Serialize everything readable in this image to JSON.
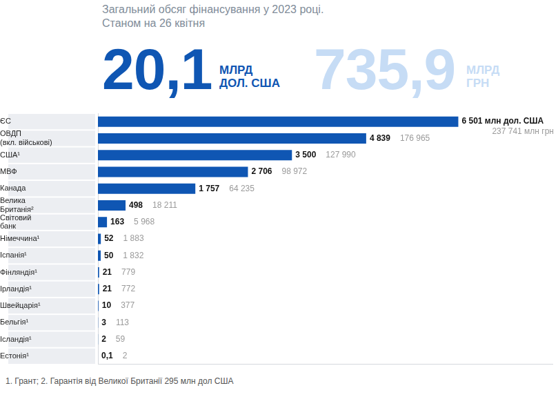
{
  "header": {
    "title": "Загальний обсяг фінансування у 2023 році.",
    "subtitle": "Станом на 26 квітня",
    "totals": [
      {
        "label": "20,1",
        "unit": "МЛРД ДОЛ. США"
      },
      {
        "label": "735,9",
        "unit": "МЛРД ГРН"
      }
    ]
  },
  "chart_data": {
    "type": "bar",
    "orientation": "horizontal",
    "categories": [
      "ЄС",
      "ОВДП (вкл. військові)",
      "США¹",
      "МВФ",
      "Канада",
      "Велика Британія²",
      "Світовий банк",
      "Німеччина¹",
      "Іспанія¹",
      "Фінляндія¹",
      "Ірландія¹",
      "Швейцарія¹",
      "Бельгія¹",
      "Ісландія¹",
      "Естонія¹"
    ],
    "values": [
      6501,
      4839,
      3500,
      2706,
      1757,
      498,
      163,
      52,
      50,
      21,
      21,
      10,
      3,
      2,
      0.1
    ],
    "value_labels": [
      "6 501 млн дол. США",
      "4 839",
      "3 500",
      "2 706",
      "1 757",
      "498",
      "163",
      "52",
      "50",
      "21",
      "21",
      "10",
      "3",
      "2",
      "0,1"
    ],
    "hryvnia_labels": [
      "237 741 млн грн",
      "176 965",
      "127 990",
      "98 972",
      "64 235",
      "18 211",
      "5 968",
      "1 883",
      "1 832",
      "779",
      "772",
      "377",
      "113",
      "59",
      "2"
    ],
    "color": "#0f56b3",
    "xlim": [
      0,
      8200
    ],
    "data_labels": true,
    "tick_labels": "y",
    "grid": false
  },
  "footnote": "1. Грант; 2. Гарантія від Великої Британії 295 млн дол США"
}
